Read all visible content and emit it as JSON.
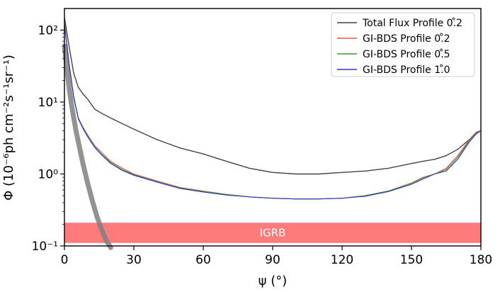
{
  "chart_data": {
    "type": "line",
    "xlabel": "ψ (°)",
    "ylabel": "Φ (10⁻⁶ph cm⁻²s⁻¹sr⁻¹)",
    "xlim": [
      0,
      180
    ],
    "ylim_log10": [
      -1,
      2.3
    ],
    "xticks": [
      0,
      30,
      60,
      90,
      120,
      150,
      180
    ],
    "xtick_labels": [
      "0",
      "30",
      "60",
      "90",
      "120",
      "150",
      "180"
    ],
    "yticks_log10": [
      -1,
      0,
      1,
      2
    ],
    "ytick_labels": [
      "10⁻¹",
      "10⁰",
      "10¹",
      "10²"
    ],
    "colors": {
      "total_flux": "#444444",
      "gibds_02": "#ff4b4b",
      "gibds_05": "#2ca02c",
      "gibds_10": "#3333cc",
      "igrb_band": "#ff7b7b",
      "gray_curve": "#808080"
    },
    "legend": {
      "placement": "top-right",
      "entries": [
        {
          "label": "Total Flux Profile 0.̊2",
          "series": "total_flux"
        },
        {
          "label": "GI-BDS Profile 0.̊2",
          "series": "gibds_02"
        },
        {
          "label": "GI-BDS Profile 0.̊5",
          "series": "gibds_05"
        },
        {
          "label": "GI-BDS Profile 1.̊0",
          "series": "gibds_10"
        }
      ]
    },
    "series": [
      {
        "name": "Total Flux Profile 0.̊2",
        "key": "total_flux",
        "x": [
          0,
          2,
          4,
          6,
          8,
          10,
          13,
          16,
          20,
          25,
          30,
          40,
          50,
          60,
          70,
          80,
          90,
          100,
          110,
          120,
          130,
          140,
          150,
          155,
          160,
          165,
          170,
          175,
          178,
          180
        ],
        "y": [
          150,
          60,
          25,
          16,
          13,
          11,
          8,
          7,
          6,
          5,
          4.2,
          3,
          2.3,
          1.9,
          1.5,
          1.2,
          1.05,
          1.0,
          1.0,
          1.05,
          1.1,
          1.2,
          1.4,
          1.5,
          1.6,
          1.8,
          2.2,
          3.0,
          3.8,
          4.0
        ]
      },
      {
        "name": "GI-BDS Profile 0.̊2",
        "key": "gibds_02",
        "x": [
          0,
          2,
          4,
          6,
          8,
          10,
          13,
          16,
          20,
          25,
          30,
          40,
          50,
          60,
          70,
          80,
          90,
          100,
          110,
          120,
          130,
          140,
          150,
          155,
          160,
          165,
          170,
          175,
          178,
          180
        ],
        "y": [
          130,
          35,
          12,
          6,
          4.5,
          3.5,
          2.5,
          2.0,
          1.5,
          1.2,
          1.0,
          0.8,
          0.65,
          0.58,
          0.52,
          0.48,
          0.46,
          0.45,
          0.45,
          0.46,
          0.5,
          0.58,
          0.75,
          0.9,
          1.0,
          1.2,
          1.8,
          3.0,
          3.8,
          4.0
        ]
      },
      {
        "name": "GI-BDS Profile 0.̊5",
        "key": "gibds_05",
        "x": [
          0,
          2,
          4,
          6,
          8,
          10,
          13,
          16,
          20,
          25,
          30,
          40,
          50,
          60,
          70,
          80,
          90,
          100,
          110,
          120,
          130,
          140,
          150,
          155,
          160,
          165,
          170,
          175,
          178,
          180
        ],
        "y": [
          125,
          34,
          12,
          6,
          4.4,
          3.4,
          2.4,
          1.9,
          1.45,
          1.15,
          0.98,
          0.78,
          0.64,
          0.57,
          0.52,
          0.48,
          0.46,
          0.45,
          0.45,
          0.46,
          0.5,
          0.58,
          0.74,
          0.88,
          1.0,
          1.15,
          1.7,
          2.9,
          3.7,
          4.0
        ]
      },
      {
        "name": "GI-BDS Profile 1.̊0",
        "key": "gibds_10",
        "x": [
          0,
          2,
          4,
          6,
          8,
          10,
          13,
          16,
          20,
          25,
          30,
          40,
          50,
          60,
          70,
          80,
          90,
          100,
          110,
          120,
          130,
          140,
          150,
          155,
          160,
          165,
          170,
          175,
          178,
          180
        ],
        "y": [
          120,
          33,
          11.5,
          5.8,
          4.3,
          3.3,
          2.35,
          1.85,
          1.4,
          1.12,
          0.96,
          0.77,
          0.63,
          0.56,
          0.51,
          0.48,
          0.46,
          0.45,
          0.45,
          0.46,
          0.49,
          0.57,
          0.72,
          0.85,
          1.0,
          1.1,
          1.6,
          2.8,
          3.6,
          4.0
        ]
      }
    ],
    "igrb_band": {
      "label": "IGRB",
      "y_low": 0.11,
      "y_high": 0.21
    },
    "gray_curve": {
      "x": [
        0,
        1,
        2,
        3,
        4,
        5,
        6,
        8,
        10,
        12,
        14,
        16,
        18,
        20
      ],
      "y": [
        60,
        30,
        16,
        9.5,
        6,
        4,
        2.8,
        1.4,
        0.75,
        0.43,
        0.26,
        0.17,
        0.12,
        0.095
      ]
    }
  }
}
